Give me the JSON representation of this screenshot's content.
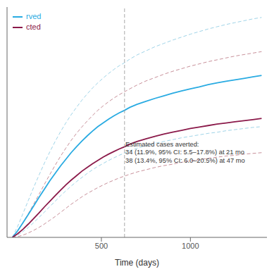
{
  "chart_data": {
    "type": "line",
    "xlabel": "Time (days)",
    "x": [
      0,
      30,
      60,
      90,
      120,
      150,
      180,
      210,
      240,
      270,
      300,
      330,
      360,
      390,
      420,
      450,
      480,
      510,
      540,
      570,
      600,
      630,
      660,
      700,
      750,
      800,
      850,
      900,
      950,
      1000,
      1050,
      1100,
      1150,
      1200,
      1250,
      1300,
      1350,
      1400
    ],
    "series": [
      {
        "color": "#9FD4E8",
        "line_style": "dashed",
        "values": [
          0.0,
          0.03,
          0.065,
          0.1,
          0.135,
          0.168,
          0.2,
          0.23,
          0.258,
          0.284,
          0.308,
          0.33,
          0.35,
          0.369,
          0.386,
          0.402,
          0.416,
          0.429,
          0.441,
          0.452,
          0.462,
          0.47,
          0.48,
          0.491,
          0.502,
          0.513,
          0.522,
          0.531,
          0.539,
          0.547,
          0.554,
          0.561,
          0.567,
          0.573,
          0.578,
          0.583,
          0.588,
          0.592
        ]
      },
      {
        "color": "#9FD4E8",
        "line_style": "dashed",
        "values": [
          0.0,
          0.006,
          0.016,
          0.027,
          0.04,
          0.054,
          0.068,
          0.083,
          0.097,
          0.112,
          0.125,
          0.138,
          0.15,
          0.161,
          0.172,
          0.182,
          0.191,
          0.199,
          0.207,
          0.214,
          0.221,
          0.227,
          0.233,
          0.24,
          0.247,
          0.253,
          0.258,
          0.263,
          0.268,
          0.272,
          0.276,
          0.28,
          0.283,
          0.287,
          0.29,
          0.293,
          0.296,
          0.298
        ]
      },
      {
        "color": "#C8909A",
        "line_style": "dashed",
        "values": [
          0.0,
          0.018,
          0.04,
          0.064,
          0.09,
          0.116,
          0.143,
          0.169,
          0.194,
          0.218,
          0.24,
          0.261,
          0.28,
          0.297,
          0.313,
          0.328,
          0.342,
          0.354,
          0.365,
          0.375,
          0.384,
          0.392,
          0.4,
          0.41,
          0.421,
          0.43,
          0.439,
          0.447,
          0.454,
          0.461,
          0.467,
          0.473,
          0.478,
          0.483,
          0.488,
          0.492,
          0.496,
          0.5
        ]
      },
      {
        "color": "#C8909A",
        "line_style": "dashed",
        "values": [
          0.0,
          0.002,
          0.006,
          0.012,
          0.019,
          0.027,
          0.036,
          0.046,
          0.056,
          0.067,
          0.078,
          0.089,
          0.099,
          0.109,
          0.118,
          0.126,
          0.134,
          0.141,
          0.148,
          0.154,
          0.16,
          0.165,
          0.17,
          0.176,
          0.182,
          0.188,
          0.193,
          0.197,
          0.202,
          0.206,
          0.209,
          0.213,
          0.216,
          0.219,
          0.221,
          0.224,
          0.226,
          0.228
        ]
      },
      {
        "name": "rved",
        "color": "#29ABE2",
        "line_style": "solid",
        "values": [
          0.0,
          0.018,
          0.04,
          0.062,
          0.085,
          0.108,
          0.13,
          0.152,
          0.172,
          0.192,
          0.21,
          0.228,
          0.244,
          0.259,
          0.273,
          0.286,
          0.298,
          0.308,
          0.318,
          0.327,
          0.335,
          0.342,
          0.35,
          0.358,
          0.366,
          0.374,
          0.381,
          0.388,
          0.394,
          0.4,
          0.405,
          0.411,
          0.416,
          0.42,
          0.424,
          0.428,
          0.432,
          0.436
        ]
      },
      {
        "name": "cted",
        "color": "#8B1A4A",
        "line_style": "solid",
        "values": [
          0.0,
          0.01,
          0.022,
          0.036,
          0.051,
          0.066,
          0.082,
          0.097,
          0.112,
          0.127,
          0.141,
          0.154,
          0.166,
          0.178,
          0.188,
          0.198,
          0.207,
          0.216,
          0.224,
          0.231,
          0.238,
          0.244,
          0.251,
          0.258,
          0.265,
          0.272,
          0.278,
          0.283,
          0.288,
          0.293,
          0.297,
          0.301,
          0.305,
          0.308,
          0.311,
          0.314,
          0.317,
          0.32
        ]
      }
    ],
    "vline": {
      "x": 630,
      "color": "#999999",
      "line_style": "dashed"
    },
    "annotations": [
      {
        "text": "Estimated cases averted:\n34 (11.9%, 95% CI: 5.5–17.8%) at 21 mo\n38 (13.4%, 95% CI: 6.0–20.5%) at 47 mo",
        "x": 635,
        "y": 0.26
      }
    ],
    "xlim": [
      -30,
      1430
    ],
    "xticks": [
      500,
      1000
    ],
    "ylim": [
      0,
      0.62
    ],
    "tick_labels": "x",
    "grid": false,
    "legend": "upper left"
  }
}
